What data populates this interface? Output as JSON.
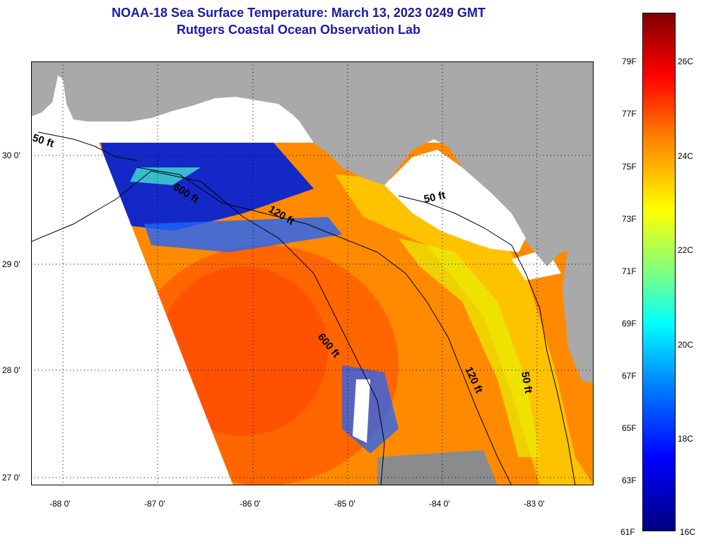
{
  "title": "NOAA-18 Sea Surface Temperature:  March 13, 2023 0249 GMT",
  "subtitle": "Rutgers Coastal Ocean Observation Lab",
  "colors": {
    "land": "#a9a9a9",
    "cloud": "#ffffff",
    "contour": "#000000",
    "title": "#1a1aa6"
  },
  "longitude_ticks": [
    "-88 0'",
    "-87 0'",
    "-86 0'",
    "-85 0'",
    "-84 0'",
    "-83 0'"
  ],
  "latitude_ticks": [
    "30 0'",
    "29 0'",
    "28 0'",
    "27 0'"
  ],
  "contours": [
    {
      "label": "50 ft",
      "depth_ft": 50
    },
    {
      "label": "600 ft",
      "depth_ft": 600
    },
    {
      "label": "120 ft",
      "depth_ft": 120
    },
    {
      "label": "50 ft",
      "depth_ft": 50
    },
    {
      "label": "600 ft",
      "depth_ft": 600
    },
    {
      "label": "120 ft",
      "depth_ft": 120
    },
    {
      "label": "50 ft",
      "depth_ft": 50
    }
  ],
  "colorbar": {
    "fahrenheit": [
      "79F",
      "77F",
      "75F",
      "73F",
      "71F",
      "69F",
      "67F",
      "65F",
      "63F",
      "61F"
    ],
    "celsius": [
      "26C",
      "24C",
      "22C",
      "20C",
      "18C",
      "16C"
    ]
  }
}
